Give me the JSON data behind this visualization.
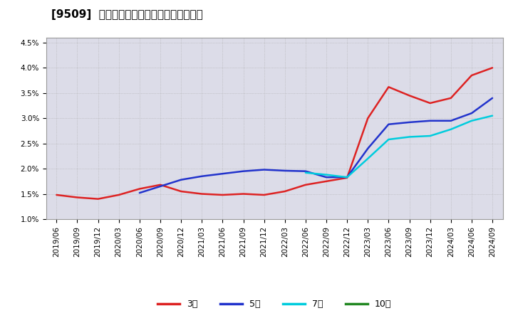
{
  "title": "[9509]  経常利益マージンの標準偏差の推移",
  "background_color": "#ffffff",
  "plot_bg_color": "#dcdce8",
  "grid_color": "#aaaaaa",
  "ylim": [
    0.01,
    0.046
  ],
  "yticks": [
    0.01,
    0.015,
    0.02,
    0.025,
    0.03,
    0.035,
    0.04,
    0.045
  ],
  "ytick_labels": [
    "1.0%",
    "1.5%",
    "2.0%",
    "2.5%",
    "3.0%",
    "3.5%",
    "4.0%",
    "4.5%"
  ],
  "x_labels": [
    "2019/06",
    "2019/09",
    "2019/12",
    "2020/03",
    "2020/06",
    "2020/09",
    "2020/12",
    "2021/03",
    "2021/06",
    "2021/09",
    "2021/12",
    "2022/03",
    "2022/06",
    "2022/09",
    "2022/12",
    "2023/03",
    "2023/06",
    "2023/09",
    "2023/12",
    "2024/03",
    "2024/06",
    "2024/09"
  ],
  "series_order": [
    "3年",
    "5年",
    "7年",
    "10年"
  ],
  "series": {
    "3年": {
      "color": "#dd2222",
      "linewidth": 1.8,
      "values": [
        0.0148,
        0.0143,
        0.014,
        0.0148,
        0.016,
        0.0168,
        0.0155,
        0.015,
        0.0148,
        0.015,
        0.0148,
        0.0155,
        0.0168,
        0.0175,
        0.0182,
        0.03,
        0.0362,
        0.0345,
        0.033,
        0.034,
        0.0385,
        0.04
      ]
    },
    "5年": {
      "color": "#2233cc",
      "linewidth": 1.8,
      "values": [
        null,
        null,
        null,
        null,
        0.0152,
        0.0165,
        0.0178,
        0.0185,
        0.019,
        0.0195,
        0.0198,
        0.0196,
        0.0195,
        0.0183,
        0.0183,
        0.024,
        0.0288,
        0.0292,
        0.0295,
        0.0295,
        0.031,
        0.034
      ]
    },
    "7年": {
      "color": "#00ccdd",
      "linewidth": 1.8,
      "values": [
        null,
        null,
        null,
        null,
        null,
        null,
        null,
        null,
        null,
        null,
        null,
        null,
        0.0192,
        0.0188,
        0.0183,
        0.022,
        0.0258,
        0.0263,
        0.0265,
        0.0278,
        0.0295,
        0.0305
      ]
    },
    "10年": {
      "color": "#228822",
      "linewidth": 1.8,
      "values": [
        null,
        null,
        null,
        null,
        null,
        null,
        null,
        null,
        null,
        null,
        null,
        null,
        null,
        null,
        null,
        null,
        null,
        null,
        null,
        null,
        null,
        null
      ]
    }
  },
  "legend_labels": [
    "3年",
    "5年",
    "7年",
    "10年"
  ],
  "legend_colors": [
    "#dd2222",
    "#2233cc",
    "#00ccdd",
    "#228822"
  ],
  "title_fontsize": 11,
  "tick_fontsize": 7.5,
  "legend_fontsize": 9
}
